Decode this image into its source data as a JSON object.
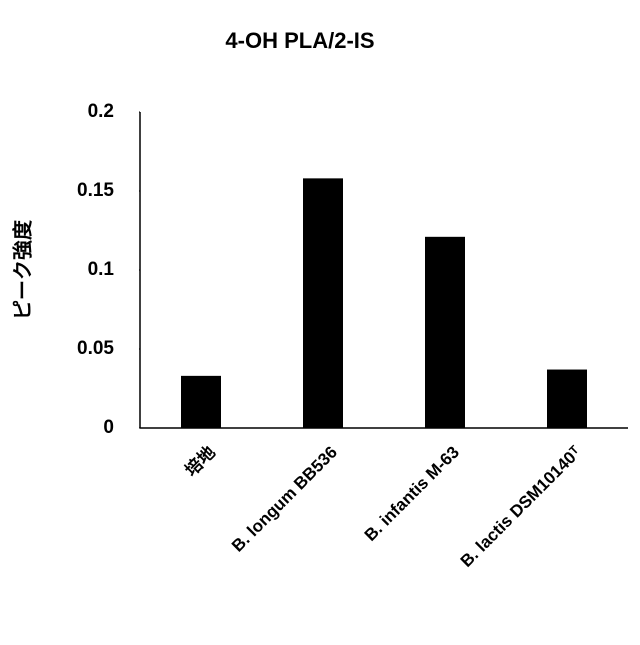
{
  "chart_data": {
    "type": "bar",
    "title": "4-OH PLA/2-IS",
    "y_label": "ピーク強度",
    "categories": [
      "培地",
      "B. longum BB536",
      "B. infantis M-63",
      "B. lactis DSM10140ᵀ"
    ],
    "values": [
      0.033,
      0.158,
      0.121,
      0.037
    ],
    "color": "#000000",
    "ylim": [
      0,
      0.2
    ],
    "yticks": [
      0,
      0.05,
      0.1,
      0.15,
      0.2
    ],
    "grid": false
  }
}
